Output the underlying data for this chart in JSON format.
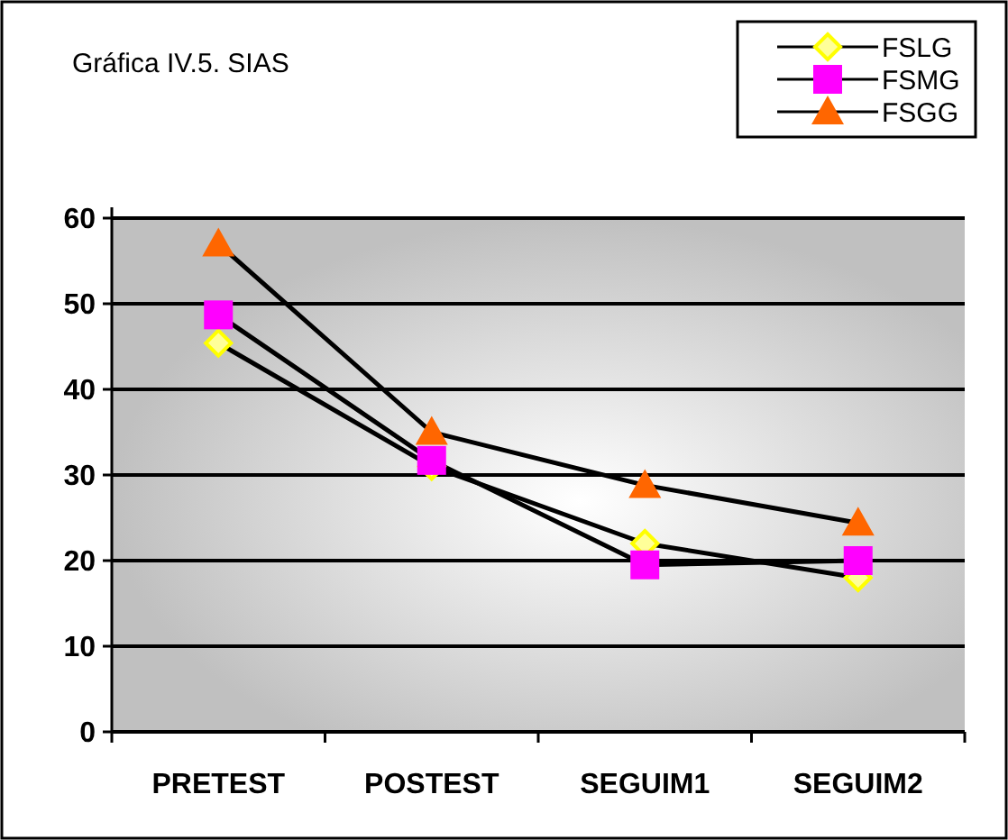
{
  "chart_data": {
    "type": "line",
    "title": "Gráfica IV.5. SIAS",
    "categories": [
      "PRETEST",
      "POSTEST",
      "SEGUIM1",
      "SEGUIM2"
    ],
    "series": [
      {
        "name": "FSLG",
        "color": "#ffff00",
        "marker": "diamond",
        "values": [
          45.4,
          31,
          22,
          18
        ]
      },
      {
        "name": "FSMG",
        "color": "#ff00ff",
        "marker": "square",
        "values": [
          48.7,
          31.7,
          19.5,
          20
        ]
      },
      {
        "name": "FSGG",
        "color": "#ff6600",
        "marker": "triangle",
        "values": [
          57,
          35,
          28.8,
          24.4
        ]
      }
    ],
    "ylim": [
      0,
      60
    ],
    "yticks": [
      0,
      10,
      20,
      30,
      40,
      50,
      60
    ],
    "grid": "y",
    "legend": "top right",
    "line_style": "solid"
  }
}
